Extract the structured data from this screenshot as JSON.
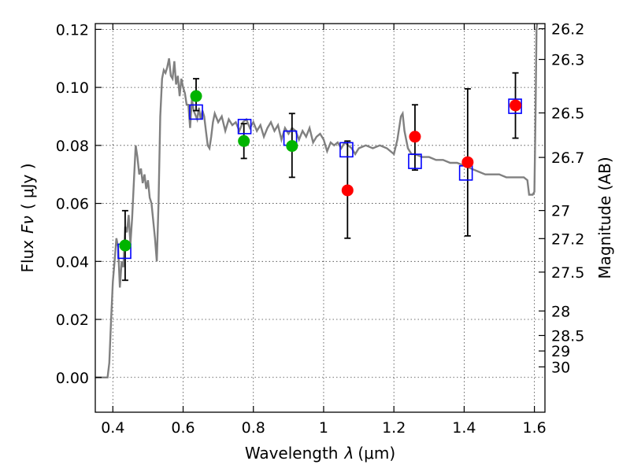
{
  "chart_data": {
    "type": "scatter",
    "title": "",
    "xlabel_text": "Wavelength",
    "xlabel_symbol": "λ",
    "xlabel_unit": "(μm)",
    "ylabel_text": "Flux",
    "ylabel_symbol": "Fν",
    "ylabel_unit": "( μJy )",
    "y2label": "Magnitude (AB)",
    "xlim": [
      0.35,
      1.63
    ],
    "ylim": [
      -0.012,
      0.122
    ],
    "grid": true,
    "x_ticks": [
      {
        "value": 0.4,
        "label": "0.4"
      },
      {
        "value": 0.6,
        "label": "0.6"
      },
      {
        "value": 0.8,
        "label": "0.8"
      },
      {
        "value": 1.0,
        "label": "1"
      },
      {
        "value": 1.2,
        "label": "1.2"
      },
      {
        "value": 1.4,
        "label": "1.4"
      },
      {
        "value": 1.6,
        "label": "1.6"
      }
    ],
    "y_ticks": [
      {
        "value": 0.0,
        "label": "0.00"
      },
      {
        "value": 0.02,
        "label": "0.02"
      },
      {
        "value": 0.04,
        "label": "0.04"
      },
      {
        "value": 0.06,
        "label": "0.06"
      },
      {
        "value": 0.08,
        "label": "0.08"
      },
      {
        "value": 0.1,
        "label": "0.10"
      },
      {
        "value": 0.12,
        "label": "0.12"
      }
    ],
    "mag_ticks": [
      {
        "mag": 26.2,
        "label": "26.2"
      },
      {
        "mag": 26.3,
        "label": "26.3"
      },
      {
        "mag": 26.5,
        "label": "26.5"
      },
      {
        "mag": 26.7,
        "label": "26.7"
      },
      {
        "mag": 27.0,
        "label": "27"
      },
      {
        "mag": 27.2,
        "label": "27.2"
      },
      {
        "mag": 27.5,
        "label": "27.5"
      },
      {
        "mag": 28.0,
        "label": "28"
      },
      {
        "mag": 28.5,
        "label": "28.5"
      },
      {
        "mag": 29.0,
        "label": "29"
      },
      {
        "mag": 30.0,
        "label": "30"
      }
    ],
    "template_color": "#808080",
    "template_spectrum": [
      [
        0.35,
        0.0
      ],
      [
        0.385,
        0.0
      ],
      [
        0.39,
        0.005
      ],
      [
        0.395,
        0.02
      ],
      [
        0.4,
        0.033
      ],
      [
        0.405,
        0.04
      ],
      [
        0.41,
        0.048
      ],
      [
        0.415,
        0.045
      ],
      [
        0.42,
        0.031
      ],
      [
        0.425,
        0.04
      ],
      [
        0.43,
        0.038
      ],
      [
        0.435,
        0.052
      ],
      [
        0.44,
        0.05
      ],
      [
        0.445,
        0.056
      ],
      [
        0.45,
        0.046
      ],
      [
        0.455,
        0.055
      ],
      [
        0.46,
        0.068
      ],
      [
        0.465,
        0.08
      ],
      [
        0.47,
        0.076
      ],
      [
        0.475,
        0.07
      ],
      [
        0.48,
        0.072
      ],
      [
        0.485,
        0.067
      ],
      [
        0.49,
        0.07
      ],
      [
        0.495,
        0.065
      ],
      [
        0.5,
        0.068
      ],
      [
        0.505,
        0.062
      ],
      [
        0.51,
        0.06
      ],
      [
        0.515,
        0.054
      ],
      [
        0.52,
        0.048
      ],
      [
        0.525,
        0.04
      ],
      [
        0.53,
        0.06
      ],
      [
        0.535,
        0.09
      ],
      [
        0.54,
        0.103
      ],
      [
        0.545,
        0.106
      ],
      [
        0.55,
        0.105
      ],
      [
        0.555,
        0.107
      ],
      [
        0.56,
        0.11
      ],
      [
        0.565,
        0.104
      ],
      [
        0.57,
        0.103
      ],
      [
        0.575,
        0.109
      ],
      [
        0.58,
        0.101
      ],
      [
        0.585,
        0.104
      ],
      [
        0.59,
        0.097
      ],
      [
        0.595,
        0.103
      ],
      [
        0.6,
        0.1
      ],
      [
        0.605,
        0.098
      ],
      [
        0.61,
        0.094
      ],
      [
        0.615,
        0.094
      ],
      [
        0.62,
        0.086
      ],
      [
        0.625,
        0.096
      ],
      [
        0.63,
        0.092
      ],
      [
        0.64,
        0.089
      ],
      [
        0.645,
        0.093
      ],
      [
        0.65,
        0.089
      ],
      [
        0.655,
        0.092
      ],
      [
        0.66,
        0.09
      ],
      [
        0.665,
        0.085
      ],
      [
        0.67,
        0.08
      ],
      [
        0.675,
        0.079
      ],
      [
        0.68,
        0.083
      ],
      [
        0.685,
        0.088
      ],
      [
        0.69,
        0.091
      ],
      [
        0.7,
        0.088
      ],
      [
        0.71,
        0.09
      ],
      [
        0.72,
        0.085
      ],
      [
        0.73,
        0.089
      ],
      [
        0.74,
        0.087
      ],
      [
        0.75,
        0.088
      ],
      [
        0.76,
        0.085
      ],
      [
        0.77,
        0.088
      ],
      [
        0.78,
        0.089
      ],
      [
        0.79,
        0.086
      ],
      [
        0.8,
        0.088
      ],
      [
        0.81,
        0.085
      ],
      [
        0.82,
        0.087
      ],
      [
        0.83,
        0.083
      ],
      [
        0.84,
        0.086
      ],
      [
        0.85,
        0.088
      ],
      [
        0.86,
        0.085
      ],
      [
        0.87,
        0.087
      ],
      [
        0.88,
        0.082
      ],
      [
        0.89,
        0.086
      ],
      [
        0.9,
        0.084
      ],
      [
        0.91,
        0.086
      ],
      [
        0.92,
        0.085
      ],
      [
        0.93,
        0.082
      ],
      [
        0.94,
        0.085
      ],
      [
        0.95,
        0.083
      ],
      [
        0.96,
        0.086
      ],
      [
        0.97,
        0.081
      ],
      [
        0.98,
        0.083
      ],
      [
        0.99,
        0.084
      ],
      [
        1.0,
        0.082
      ],
      [
        1.01,
        0.078
      ],
      [
        1.02,
        0.081
      ],
      [
        1.03,
        0.08
      ],
      [
        1.04,
        0.081
      ],
      [
        1.05,
        0.079
      ],
      [
        1.06,
        0.081
      ],
      [
        1.07,
        0.08
      ],
      [
        1.08,
        0.079
      ],
      [
        1.09,
        0.077
      ],
      [
        1.1,
        0.079
      ],
      [
        1.12,
        0.08
      ],
      [
        1.14,
        0.079
      ],
      [
        1.16,
        0.08
      ],
      [
        1.18,
        0.079
      ],
      [
        1.2,
        0.077
      ],
      [
        1.21,
        0.082
      ],
      [
        1.22,
        0.09
      ],
      [
        1.225,
        0.091
      ],
      [
        1.23,
        0.085
      ],
      [
        1.24,
        0.079
      ],
      [
        1.25,
        0.077
      ],
      [
        1.26,
        0.077
      ],
      [
        1.28,
        0.076
      ],
      [
        1.3,
        0.076
      ],
      [
        1.32,
        0.075
      ],
      [
        1.34,
        0.075
      ],
      [
        1.36,
        0.074
      ],
      [
        1.38,
        0.074
      ],
      [
        1.4,
        0.073
      ],
      [
        1.42,
        0.072
      ],
      [
        1.44,
        0.071
      ],
      [
        1.46,
        0.07
      ],
      [
        1.48,
        0.07
      ],
      [
        1.5,
        0.07
      ],
      [
        1.52,
        0.069
      ],
      [
        1.54,
        0.069
      ],
      [
        1.56,
        0.069
      ],
      [
        1.57,
        0.069
      ],
      [
        1.58,
        0.068
      ],
      [
        1.585,
        0.063
      ],
      [
        1.59,
        0.063
      ],
      [
        1.595,
        0.063
      ],
      [
        1.6,
        0.064
      ],
      [
        1.603,
        0.09
      ],
      [
        1.606,
        0.12
      ],
      [
        1.61,
        0.125
      ]
    ],
    "model_points": {
      "marker": "open-square",
      "color": "#0000ff",
      "x": [
        0.433,
        0.637,
        0.775,
        0.905,
        1.065,
        1.26,
        1.405,
        1.545
      ],
      "y": [
        0.0435,
        0.0915,
        0.0865,
        0.0825,
        0.0785,
        0.0745,
        0.0705,
        0.0935
      ]
    },
    "optical_points": {
      "marker": "filled-circle",
      "color": "#00b400",
      "x": [
        0.435,
        0.637,
        0.773,
        0.91
      ],
      "y": [
        0.0455,
        0.097,
        0.0815,
        0.0798
      ],
      "yerr_low": [
        0.0335,
        0.092,
        0.0755,
        0.069
      ],
      "yerr_high": [
        0.0575,
        0.103,
        0.0875,
        0.091
      ]
    },
    "nir_points": {
      "marker": "filled-circle",
      "color": "#ff0000",
      "x": [
        1.068,
        1.26,
        1.41,
        1.546
      ],
      "y": [
        0.0645,
        0.083,
        0.0742,
        0.0938
      ],
      "yerr_low": [
        0.048,
        0.0715,
        0.0488,
        0.0825
      ],
      "yerr_high": [
        0.0815,
        0.094,
        0.0995,
        0.105
      ]
    }
  }
}
